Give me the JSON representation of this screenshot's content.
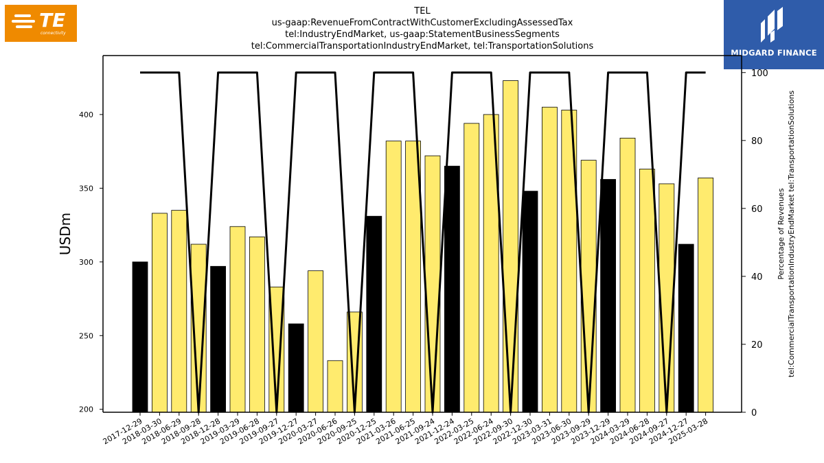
{
  "branding": {
    "left_logo_text": "TE",
    "left_logo_sub": "connectivity",
    "left_logo_color": "#ef8a00",
    "right_logo_text": "MIDGARD FINANCE",
    "right_logo_color": "#2f5caa"
  },
  "chart_data": {
    "type": "bar",
    "title_lines": [
      "TEL",
      "us-gaap:RevenueFromContractWithCustomerExcludingAssessedTax",
      "tel:IndustryEndMarket, us-gaap:StatementBusinessSegments",
      "tel:CommercialTransportationIndustryEndMarket, tel:TransportationSolutions"
    ],
    "ylabel": "USDm",
    "y2label_lines": [
      "Percentage of Revenues",
      "tel:CommercialTransportationIndustryEndMarket tel:TransportationSolutions"
    ],
    "ylim": [
      198,
      440
    ],
    "y2lim": [
      0,
      105
    ],
    "yticks": [
      200,
      250,
      300,
      350,
      400
    ],
    "y2ticks": [
      0,
      20,
      40,
      60,
      80,
      100
    ],
    "categories": [
      "2017-12-29",
      "2018-03-30",
      "2018-06-29",
      "2018-09-28",
      "2018-12-28",
      "2019-03-29",
      "2019-06-28",
      "2019-09-27",
      "2019-12-27",
      "2020-03-27",
      "2020-06-26",
      "2020-09-25",
      "2020-12-25",
      "2021-03-26",
      "2021-06-25",
      "2021-09-24",
      "2021-12-24",
      "2022-03-25",
      "2022-06-24",
      "2022-09-30",
      "2022-12-30",
      "2023-03-31",
      "2023-06-30",
      "2023-09-29",
      "2023-12-29",
      "2024-03-29",
      "2024-06-28",
      "2024-09-27",
      "2024-12-27",
      "2025-03-28"
    ],
    "values": [
      300,
      333,
      335,
      312,
      297,
      324,
      317,
      283,
      258,
      294,
      233,
      266,
      331,
      382,
      382,
      372,
      365,
      394,
      400,
      423,
      348,
      405,
      403,
      369,
      356,
      384,
      363,
      353,
      312,
      357
    ],
    "bar_colors": [
      "#000000",
      "#ffeb6e",
      "#ffeb6e",
      "#ffeb6e",
      "#000000",
      "#ffeb6e",
      "#ffeb6e",
      "#ffeb6e",
      "#000000",
      "#ffeb6e",
      "#ffeb6e",
      "#ffeb6e",
      "#000000",
      "#ffeb6e",
      "#ffeb6e",
      "#ffeb6e",
      "#000000",
      "#ffeb6e",
      "#ffeb6e",
      "#ffeb6e",
      "#000000",
      "#ffeb6e",
      "#ffeb6e",
      "#ffeb6e",
      "#000000",
      "#ffeb6e",
      "#ffeb6e",
      "#ffeb6e",
      "#000000",
      "#ffeb6e"
    ],
    "line_values": [
      100,
      100,
      100,
      0,
      100,
      100,
      100,
      0,
      100,
      100,
      100,
      0,
      100,
      100,
      100,
      0,
      100,
      100,
      100,
      0,
      100,
      100,
      100,
      0,
      100,
      100,
      100,
      0,
      100,
      100
    ],
    "grid": false
  }
}
